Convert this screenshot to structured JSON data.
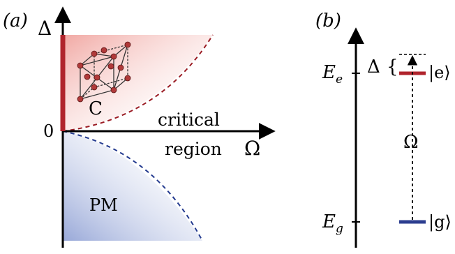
{
  "panel_a": {
    "label": "(a)",
    "y_axis_label": "Δ",
    "x_axis_label": "Ω",
    "origin_label": "0",
    "region_c_label": "C",
    "region_pm_label": "PM",
    "critical_line1": "critical",
    "critical_line2": "region"
  },
  "panel_b": {
    "label": "(b)",
    "level_e_axis": "E",
    "level_e_sub": "e",
    "level_g_axis": "E",
    "level_g_sub": "g",
    "detuning_label": "Δ",
    "detuning_brace": "{",
    "rabi_label": "Ω",
    "ket_e": "|e⟩",
    "ket_g": "|g⟩"
  },
  "colors": {
    "crystal_red": "#b0242c",
    "pm_blue": "#2b3d8f",
    "axis": "#000000"
  }
}
